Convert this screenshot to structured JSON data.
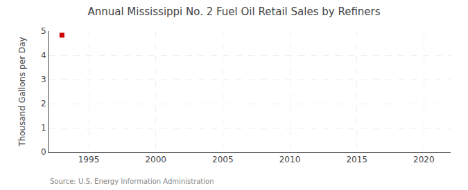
{
  "chart_data": {
    "type": "scatter",
    "title": "Annual Mississippi No. 2 Fuel Oil Retail Sales by Refiners",
    "ylabel": "Thousand Gallons per Day",
    "annotation": "Source: U.S. Energy Information Administration",
    "x": [
      1993
    ],
    "values": [
      4.83
    ],
    "color": "#CC0000",
    "marker": "square",
    "xlim": [
      1992,
      2022
    ],
    "ylim": [
      0,
      5
    ],
    "xticks": [
      1995,
      2000,
      2005,
      2010,
      2015,
      2020
    ],
    "yticks": [
      0,
      1,
      2,
      3,
      4,
      5
    ],
    "grid": true
  }
}
